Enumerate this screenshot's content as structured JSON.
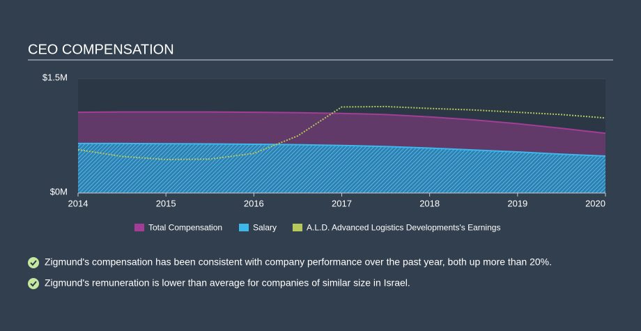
{
  "chart_data": {
    "type": "area",
    "title": "CEO COMPENSATION",
    "x": [
      2014,
      2014.5,
      2015,
      2015.5,
      2016,
      2016.5,
      2017,
      2017.5,
      2018,
      2018.5,
      2019,
      2019.5,
      2020
    ],
    "xlim": [
      2014,
      2020
    ],
    "xticks": [
      2014,
      2015,
      2016,
      2017,
      2018,
      2019,
      2020
    ],
    "ylim": [
      0,
      1.5
    ],
    "yticks": [
      {
        "value": 0,
        "label": "$0M"
      },
      {
        "value": 1.5,
        "label": "$1.5M"
      }
    ],
    "series": [
      {
        "name": "Total Compensation",
        "color": "#a43d95",
        "values": [
          1.06,
          1.065,
          1.065,
          1.065,
          1.06,
          1.055,
          1.045,
          1.03,
          1.0,
          0.96,
          0.91,
          0.85,
          0.785
        ]
      },
      {
        "name": "Salary",
        "color": "#3cb8ea",
        "values": [
          0.65,
          0.65,
          0.648,
          0.645,
          0.64,
          0.635,
          0.625,
          0.61,
          0.59,
          0.565,
          0.54,
          0.51,
          0.485
        ]
      },
      {
        "name": "A.L.D. Advanced Logistics Developments's Earnings",
        "color": "#b7c95c",
        "values": [
          0.57,
          0.48,
          0.44,
          0.445,
          0.52,
          0.75,
          1.13,
          1.135,
          1.11,
          1.09,
          1.06,
          1.03,
          0.985
        ]
      }
    ]
  },
  "bullets": [
    "Zigmund's compensation has been consistent with company performance over the past year, both up more than 20%.",
    "Zigmund's remuneration is lower than average for companies of similar size in Israel."
  ]
}
